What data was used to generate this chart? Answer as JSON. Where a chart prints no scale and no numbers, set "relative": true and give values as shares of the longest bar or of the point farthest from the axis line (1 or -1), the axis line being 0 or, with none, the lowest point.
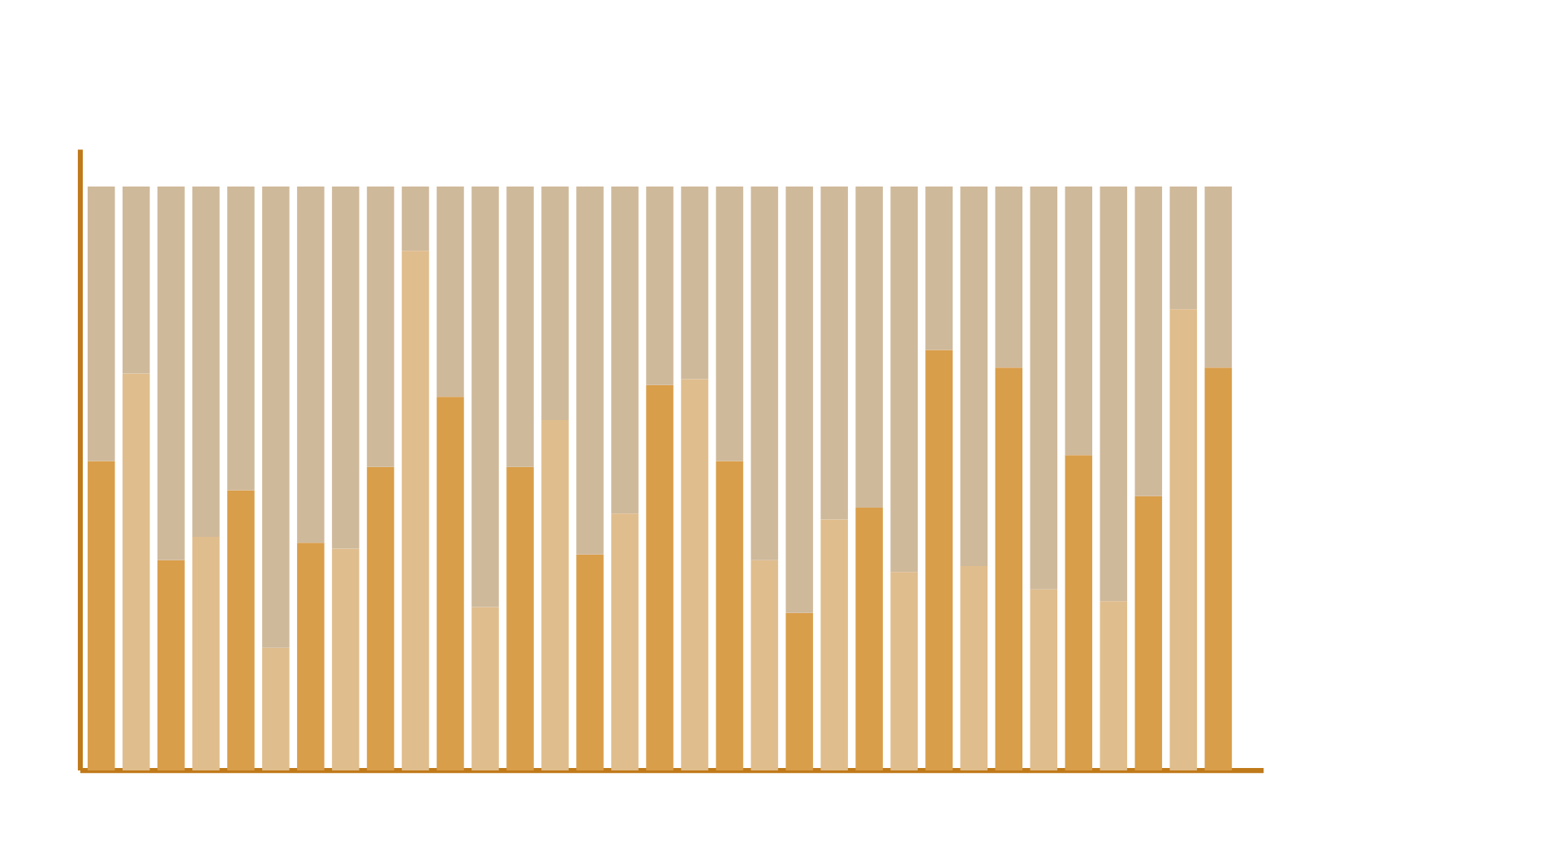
{
  "chart_data": {
    "type": "bar",
    "relative": true,
    "stacked": true,
    "categories": [
      null,
      null,
      null,
      null,
      null,
      null,
      null,
      null,
      null,
      null,
      null,
      null,
      null,
      null,
      null,
      null,
      null,
      null,
      null,
      null,
      null,
      null,
      null,
      null,
      null,
      null,
      null,
      null,
      null,
      null,
      null,
      null,
      null
    ],
    "series": [
      {
        "colors": [
          "#d99e4a",
          "#e0bd8c",
          "#d99e4a",
          "#e0bd8c",
          "#d99e4a",
          "#e0bd8c",
          "#d99e4a",
          "#e0bd8c",
          "#d99e4a",
          "#e0bd8c",
          "#d99e4a",
          "#e0bd8c",
          "#d99e4a",
          "#e0bd8c",
          "#d99e4a",
          "#e0bd8c",
          "#d99e4a",
          "#e0bd8c",
          "#d99e4a",
          "#e0bd8c",
          "#d99e4a",
          "#e0bd8c",
          "#d99e4a",
          "#e0bd8c",
          "#d99e4a",
          "#e0bd8c",
          "#d99e4a",
          "#e0bd8c",
          "#d99e4a",
          "#e0bd8c",
          "#d99e4a",
          "#e0bd8c",
          "#d99e4a"
        ],
        "values": [
          0.53,
          0.68,
          0.36,
          0.4,
          0.48,
          0.21,
          0.39,
          0.38,
          0.52,
          0.89,
          0.64,
          0.28,
          0.52,
          0.6,
          0.37,
          0.44,
          0.66,
          0.67,
          0.53,
          0.36,
          0.27,
          0.43,
          0.45,
          0.34,
          0.72,
          0.35,
          0.69,
          0.31,
          0.54,
          0.29,
          0.47,
          0.79,
          0.69
        ]
      },
      {
        "color": "#cfb99b",
        "values": [
          0.47,
          0.32,
          0.64,
          0.6,
          0.52,
          0.79,
          0.61,
          0.62,
          0.48,
          0.11,
          0.36,
          0.72,
          0.48,
          0.4,
          0.63,
          0.56,
          0.34,
          0.33,
          0.47,
          0.64,
          0.73,
          0.57,
          0.55,
          0.66,
          0.28,
          0.65,
          0.31,
          0.69,
          0.46,
          0.71,
          0.53,
          0.21,
          0.31
        ]
      }
    ]
  }
}
